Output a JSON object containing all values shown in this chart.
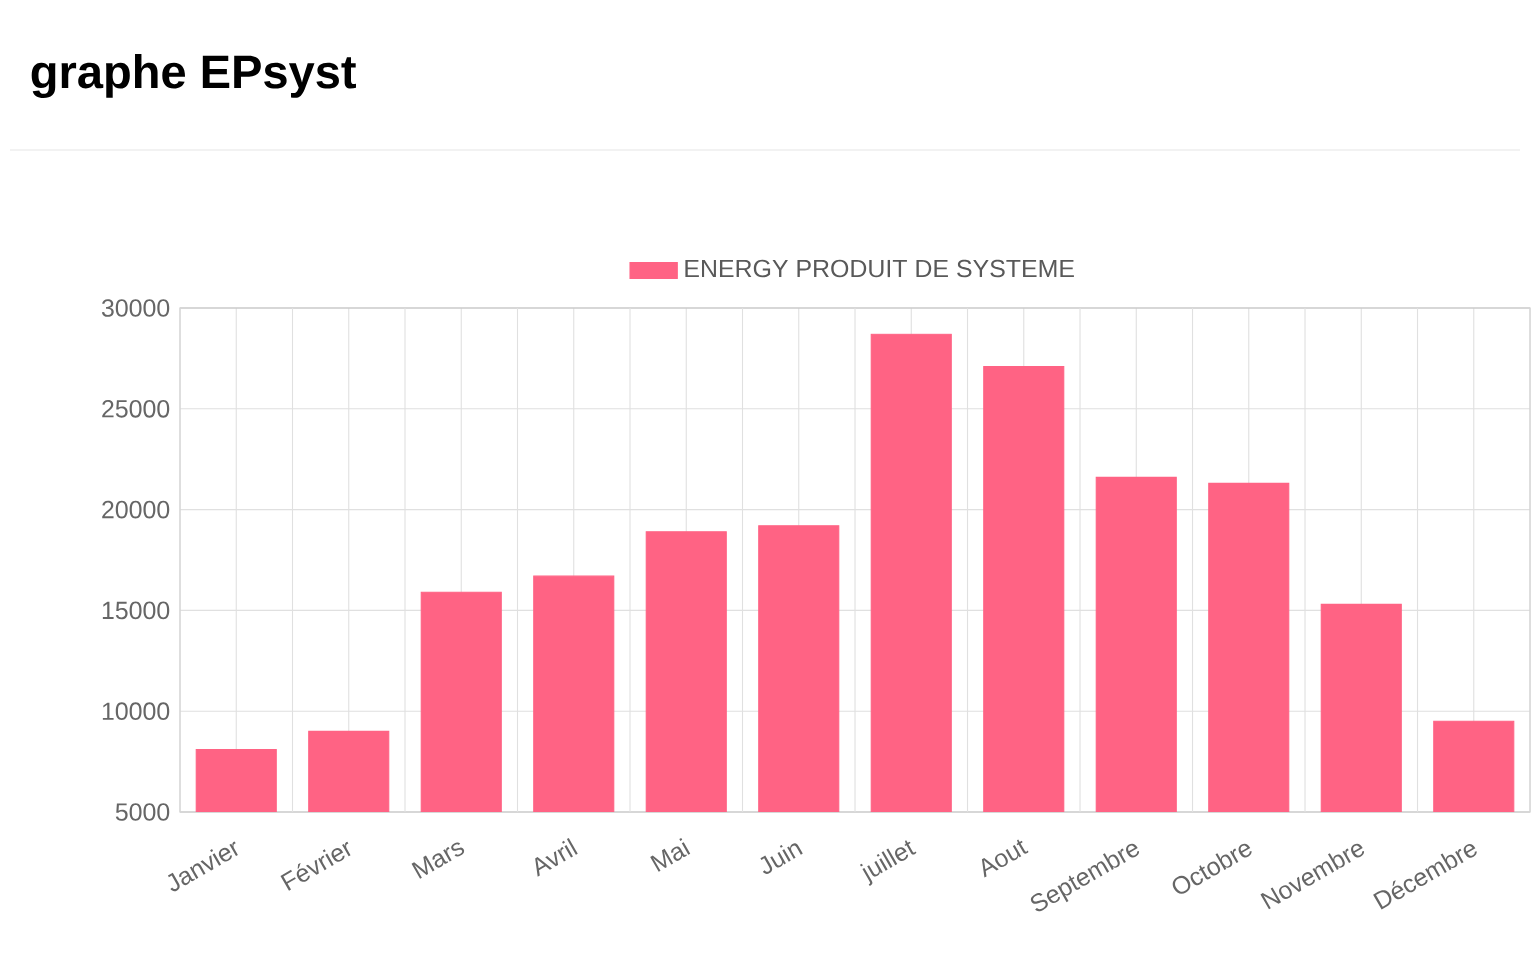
{
  "chart_data": {
    "type": "bar",
    "title": "graphe EPsyst",
    "categories": [
      "Janvier",
      "Février",
      "Mars",
      "Avril",
      "Mai",
      "Juin",
      "juillet",
      "Aout",
      "Septembre",
      "Octobre",
      "Novembre",
      "Décembre"
    ],
    "series": [
      {
        "name": "ENERGY PRODUIT DE SYSTEME",
        "color": "#ff6384",
        "values": [
          8100,
          9000,
          15900,
          16700,
          18900,
          19200,
          28700,
          27100,
          21600,
          21300,
          15300,
          9500
        ]
      }
    ],
    "ylim": [
      5000,
      30000
    ],
    "yticks": [
      5000,
      10000,
      15000,
      20000,
      25000,
      30000
    ],
    "grid": true,
    "legend": "top"
  }
}
